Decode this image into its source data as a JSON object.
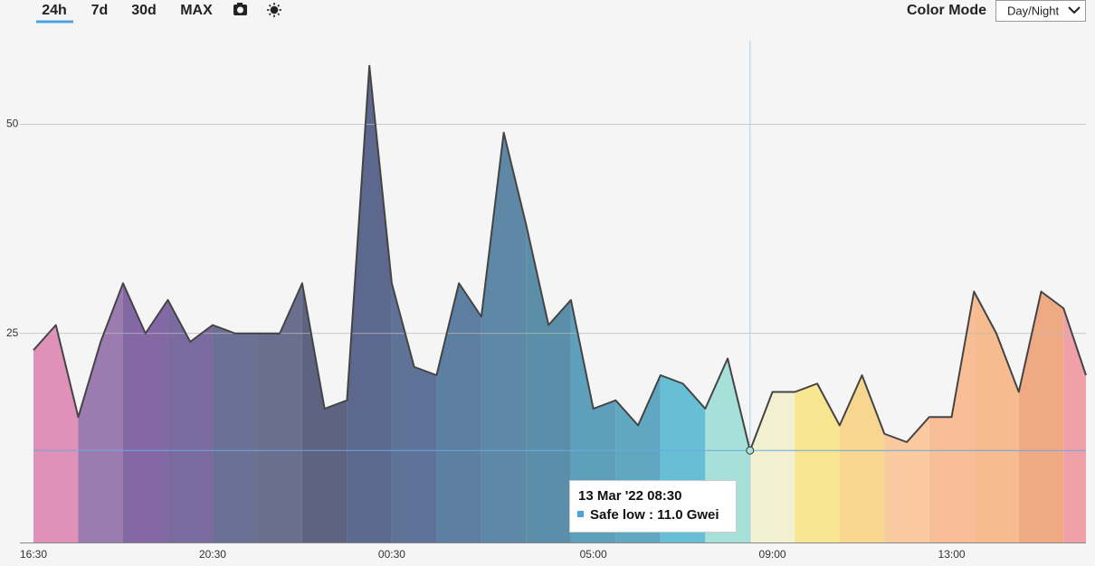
{
  "toolbar": {
    "tabs": [
      "24h",
      "7d",
      "30d",
      "MAX"
    ],
    "color_mode_label": "Color Mode",
    "color_mode_value": "Day/Night"
  },
  "chart_data": {
    "type": "area",
    "categories": [
      "16:30",
      null,
      null,
      null,
      null,
      null,
      null,
      null,
      "20:30",
      null,
      null,
      null,
      null,
      null,
      null,
      null,
      "00:30",
      null,
      null,
      null,
      null,
      null,
      null,
      null,
      null,
      "05:00",
      null,
      null,
      null,
      null,
      null,
      null,
      null,
      "09:00",
      null,
      null,
      null,
      null,
      null,
      null,
      null,
      "13:00",
      null,
      null,
      null,
      null,
      null,
      null
    ],
    "values": [
      23,
      26,
      15,
      24,
      31,
      25,
      29,
      24,
      26,
      25,
      25,
      25,
      31,
      16,
      17,
      57,
      31,
      21,
      20,
      31,
      27,
      49,
      38,
      26,
      29,
      16,
      17,
      14,
      20,
      19,
      16,
      22,
      11,
      18,
      18,
      19,
      14,
      20,
      13,
      12,
      15,
      15,
      30,
      25,
      18,
      30,
      28,
      20
    ],
    "band_colors": [
      "#e091b8",
      "#9b7bb0",
      "#8468a5",
      "#7a6aa0",
      "#6b7194",
      "#6b6f8e",
      "#5f6382",
      "#5d688e",
      "#5f7297",
      "#5d7fa2",
      "#5e88a6",
      "#5b8ea8",
      "#5ea0bc",
      "#60a7c2",
      "#66bfd4",
      "#a6e0d8",
      "#f2f0d0",
      "#f7e68f",
      "#f7d690",
      "#f9c9a0",
      "#f8bf97",
      "#f6bb8e",
      "#efaa84",
      "#f0a0a8"
    ],
    "line_color": "#444444",
    "ylim": [
      0,
      60
    ],
    "yticks": [
      25,
      50
    ],
    "grid": true,
    "tooltip": {
      "title": "13 Mar '22 08:30",
      "text": "Safe low : 11.0 Gwei",
      "color": "#4aa3df"
    }
  }
}
